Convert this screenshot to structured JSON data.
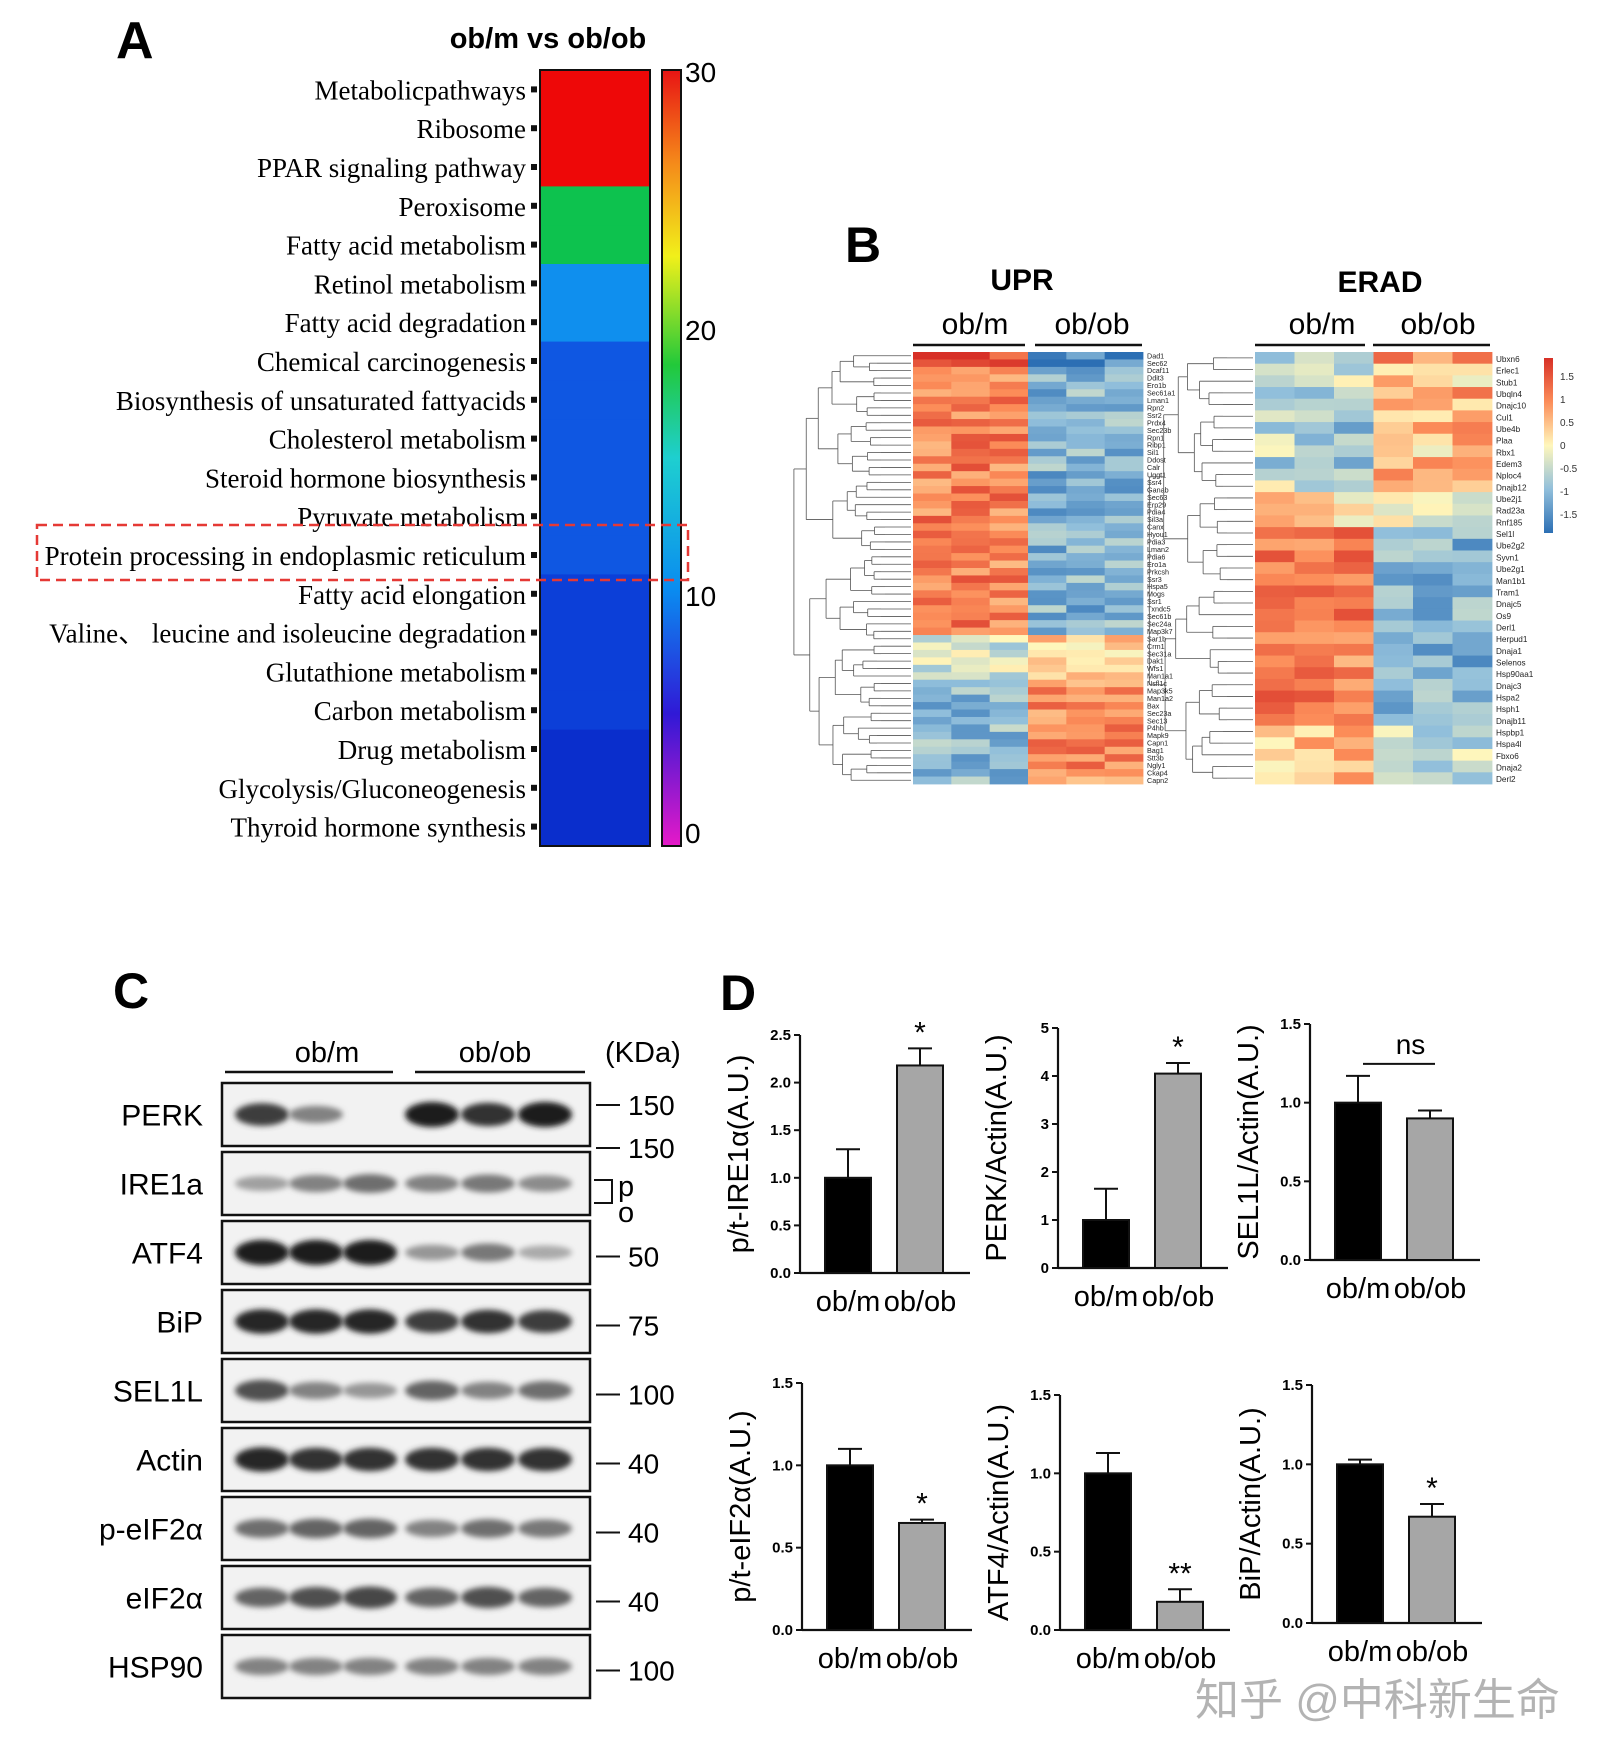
{
  "panels": {
    "A": {
      "letter": "A",
      "title": "ob/m vs ob/ob",
      "colorbar_ticks": [
        "30",
        "20",
        "10",
        "0"
      ],
      "pathways": [
        {
          "label": "Metabolicpathways",
          "value": 30
        },
        {
          "label": "Ribosome",
          "value": 30
        },
        {
          "label": "PPAR signaling pathway",
          "value": 30
        },
        {
          "label": "Peroxisome",
          "value": 20
        },
        {
          "label": "Fatty acid metabolism",
          "value": 20
        },
        {
          "label": "Retinol metabolism",
          "value": 12.5
        },
        {
          "label": "Fatty acid degradation",
          "value": 12.5
        },
        {
          "label": "Chemical carcinogenesis",
          "value": 9
        },
        {
          "label": "Biosynthesis of unsaturated fattyacids",
          "value": 9
        },
        {
          "label": "Cholesterol metabolism",
          "value": 9
        },
        {
          "label": "Steroid hormone biosynthesis",
          "value": 9
        },
        {
          "label": "Pyruvate metabolism",
          "value": 9
        },
        {
          "label": "Protein processing in endoplasmic reticulum",
          "value": 9
        },
        {
          "label": "Fatty acid elongation",
          "value": 8.5
        },
        {
          "label": "Valine、 leucine and isoleucine degradation",
          "value": 8.5
        },
        {
          "label": "Glutathione metabolism",
          "value": 8.5
        },
        {
          "label": "Carbon metabolism",
          "value": 8.5
        },
        {
          "label": "Drug metabolism",
          "value": 7.5
        },
        {
          "label": "Glycolysis/Gluconeogenesis",
          "value": 7.5
        },
        {
          "label": "Thyroid hormone synthesis",
          "value": 7.5
        }
      ]
    },
    "B": {
      "letter": "B",
      "upr_title": "UPR",
      "erad_title": "ERAD",
      "group_left": "ob/m",
      "group_right": "ob/ob",
      "scale_ticks": [
        "1.5",
        "1",
        "0.5",
        "0",
        "-0.5",
        "-1",
        "-1.5"
      ],
      "upr_genes": [
        "Dad1",
        "Sec62",
        "Dcaf11",
        "Ddit3",
        "Ero1b",
        "Sec61a1",
        "Lman1",
        "Rpn2",
        "Ssr2",
        "Prdx4",
        "Sec23b",
        "Rpn1",
        "Ribp1",
        "Sil1",
        "Ddost",
        "Calr",
        "Uggt1",
        "Ssr4",
        "Ganab",
        "Sec63",
        "Erp29",
        "Pdia4",
        "Sil3a",
        "Canx",
        "Hyou1",
        "Pdia3",
        "Lman2",
        "Pdia6",
        "Ero1a",
        "Prkcsh",
        "Ssr3",
        "Hspa5",
        "Mogs",
        "Ssr1",
        "Txndc5",
        "Sec61b",
        "Sec24a",
        "Map3k7",
        "Sar1b",
        "Crm1",
        "Sec31a",
        "Dak1",
        "Wfs1",
        "Man1a1",
        "Nsfl1c",
        "Map3k5",
        "Man1a2",
        "Bax",
        "Sec23a",
        "Sec13",
        "P4hb",
        "Mapk9",
        "Capn1",
        "Bag1",
        "Stt3b",
        "Ngly1",
        "Ckap4",
        "Capn2"
      ],
      "erad_genes": [
        "Ubxn6",
        "Erlec1",
        "Stub1",
        "Ubqln4",
        "Dnajc10",
        "Cul1",
        "Ube4b",
        "Plaa",
        "Rbx1",
        "Edem3",
        "Nploc4",
        "Dnajb12",
        "Ube2j1",
        "Rad23a",
        "Rnf185",
        "Sel1l",
        "Ube2g2",
        "Syvn1",
        "Ube2g1",
        "Man1b1",
        "Tram1",
        "Dnajc5",
        "Os9",
        "Derl1",
        "Herpud1",
        "Dnaja1",
        "Selenos",
        "Hsp90aa1",
        "Dnajc3",
        "Hspa2",
        "Hsph1",
        "Dnajb11",
        "Hspbp1",
        "Hspa4l",
        "Fbxo6",
        "Dnaja2",
        "Derl2"
      ]
    },
    "C": {
      "letter": "C",
      "group_left": "ob/m",
      "group_right": "ob/ob",
      "kda_label": "(KDa)",
      "po_labels": [
        "p",
        "o"
      ],
      "blots": [
        {
          "name": "PERK",
          "markers": [
            "150"
          ],
          "bands": [
            0.8,
            0.45,
            0.03,
            0.95,
            0.85,
            0.95
          ]
        },
        {
          "name": "IRE1a",
          "markers": [
            "150"
          ],
          "bands": [
            0.3,
            0.45,
            0.55,
            0.45,
            0.5,
            0.4
          ]
        },
        {
          "name": "ATF4",
          "markers": [
            "50"
          ],
          "bands": [
            0.95,
            0.95,
            0.95,
            0.35,
            0.5,
            0.25
          ]
        },
        {
          "name": "BiP",
          "markers": [
            "75"
          ],
          "bands": [
            0.9,
            0.9,
            0.9,
            0.8,
            0.85,
            0.8
          ]
        },
        {
          "name": "SEL1L",
          "markers": [
            "100"
          ],
          "bands": [
            0.7,
            0.45,
            0.35,
            0.6,
            0.45,
            0.55
          ]
        },
        {
          "name": "Actin",
          "markers": [
            "40"
          ],
          "bands": [
            0.9,
            0.85,
            0.85,
            0.85,
            0.85,
            0.85
          ]
        },
        {
          "name": "p-eIF2α",
          "markers": [
            "40"
          ],
          "bands": [
            0.55,
            0.6,
            0.6,
            0.45,
            0.55,
            0.5
          ]
        },
        {
          "name": "eIF2α",
          "markers": [
            "40"
          ],
          "bands": [
            0.6,
            0.7,
            0.75,
            0.6,
            0.7,
            0.6
          ]
        },
        {
          "name": "HSP90",
          "markers": [
            "100"
          ],
          "bands": [
            0.45,
            0.45,
            0.45,
            0.45,
            0.45,
            0.45
          ]
        }
      ]
    },
    "D": {
      "letter": "D",
      "watermark": "知乎 @中科新生命"
    }
  },
  "chart_data": [
    {
      "type": "bar",
      "ylabel": "p/t-IRE1α(A.U.)",
      "categories": [
        "ob/m",
        "ob/ob"
      ],
      "values": [
        1.0,
        2.18
      ],
      "errors": [
        0.3,
        0.18
      ],
      "ylim": [
        0,
        2.5
      ],
      "yticks": [
        "0.0",
        "0.5",
        "1.0",
        "1.5",
        "2.0",
        "2.5"
      ],
      "annotation": "*"
    },
    {
      "type": "bar",
      "ylabel": "PERK/Actin(A.U.)",
      "categories": [
        "ob/m",
        "ob/ob"
      ],
      "values": [
        1.0,
        4.05
      ],
      "errors": [
        0.65,
        0.22
      ],
      "ylim": [
        0,
        5
      ],
      "yticks": [
        "0",
        "1",
        "2",
        "3",
        "4",
        "5"
      ],
      "annotation": "*"
    },
    {
      "type": "bar",
      "ylabel": "SEL1L/Actin(A.U.)",
      "categories": [
        "ob/m",
        "ob/ob"
      ],
      "values": [
        1.0,
        0.9
      ],
      "errors": [
        0.17,
        0.05
      ],
      "ylim": [
        0,
        1.5
      ],
      "yticks": [
        "0.0",
        "0.5",
        "1.0",
        "1.5"
      ],
      "annotation": "ns"
    },
    {
      "type": "bar",
      "ylabel": "p/t-eIF2α(A.U.)",
      "categories": [
        "ob/m",
        "ob/ob"
      ],
      "values": [
        1.0,
        0.65
      ],
      "errors": [
        0.1,
        0.02
      ],
      "ylim": [
        0,
        1.5
      ],
      "yticks": [
        "0.0",
        "0.5",
        "1.0",
        "1.5"
      ],
      "annotation": "*"
    },
    {
      "type": "bar",
      "ylabel": "ATF4/Actin(A.U.)",
      "categories": [
        "ob/m",
        "ob/ob"
      ],
      "values": [
        1.0,
        0.18
      ],
      "errors": [
        0.13,
        0.08
      ],
      "ylim": [
        0,
        1.5
      ],
      "yticks": [
        "0.0",
        "0.5",
        "1.0",
        "1.5"
      ],
      "annotation": "**"
    },
    {
      "type": "bar",
      "ylabel": "BiP/Actin(A.U.)",
      "categories": [
        "ob/m",
        "ob/ob"
      ],
      "values": [
        1.0,
        0.67
      ],
      "errors": [
        0.03,
        0.08
      ],
      "ylim": [
        0,
        1.5
      ],
      "yticks": [
        "0.0",
        "0.5",
        "1.0",
        "1.5"
      ],
      "annotation": "*"
    }
  ],
  "colors": {
    "ob_m_bar": "#000000",
    "ob_ob_bar": "#a6a6a6",
    "highlight_box": "#e53935"
  }
}
